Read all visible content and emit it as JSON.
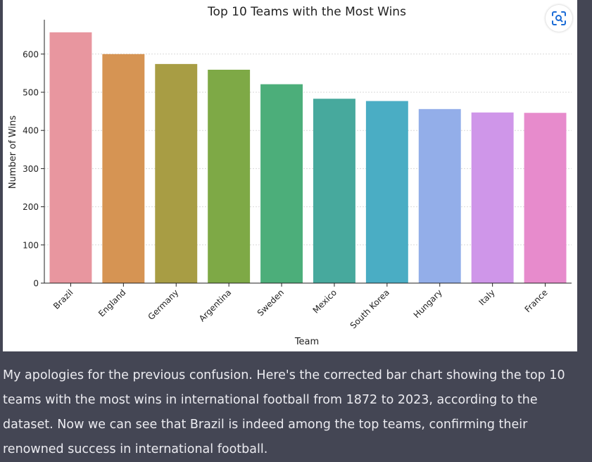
{
  "chart_data": {
    "type": "bar",
    "title": "Top 10 Teams with the Most Wins",
    "xlabel": "Team",
    "ylabel": "Number of Wins",
    "categories": [
      "Brazil",
      "England",
      "Germany",
      "Argentina",
      "Sweden",
      "Mexico",
      "South Korea",
      "Hungary",
      "Italy",
      "France"
    ],
    "values": [
      657,
      600,
      574,
      559,
      521,
      483,
      477,
      456,
      447,
      446
    ],
    "colors": [
      "#e8969f",
      "#d69453",
      "#a89d44",
      "#7ea946",
      "#4cae7a",
      "#47a99d",
      "#4aadc4",
      "#93aee9",
      "#cf96e9",
      "#e78bcc"
    ],
    "yticks": [
      0,
      100,
      200,
      300,
      400,
      500,
      600
    ],
    "ylim": [
      0,
      690
    ],
    "grid": true,
    "legend": "none"
  },
  "toolbar": {
    "lens_icon": "scan-icon"
  },
  "message": {
    "text": "My apologies for the previous confusion. Here's the corrected bar chart showing the top 10 teams with the most wins in international football from 1872 to 2023, according to the dataset. Now we can see that Brazil is indeed among the top teams, confirming their renowned success in international football."
  }
}
